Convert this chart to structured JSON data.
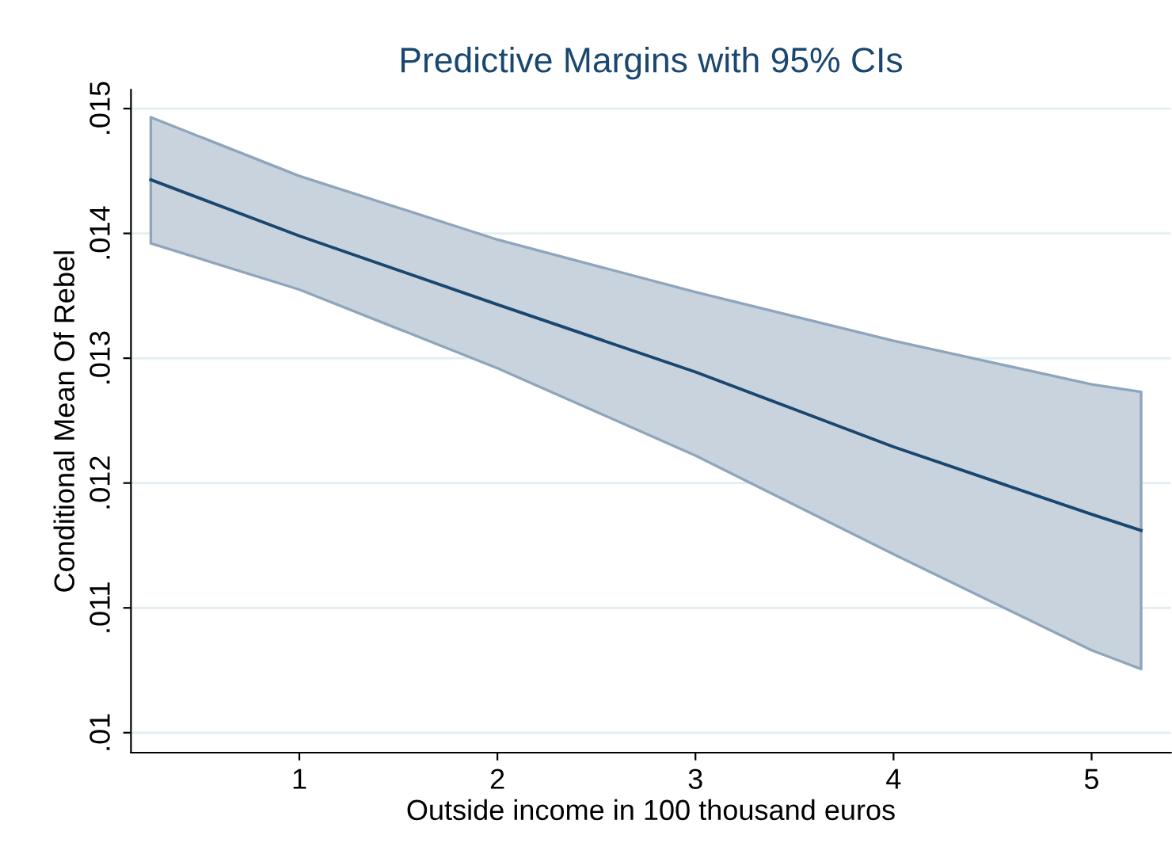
{
  "chart_data": {
    "type": "line",
    "title": "Predictive Margins with 95% CIs",
    "xlabel": "Outside income in 100 thousand euros",
    "ylabel": "Conditional Mean Of Rebel",
    "series": [
      {
        "color": "#1a476f",
        "x": [
          0.25,
          1,
          2,
          3,
          4,
          5,
          5.25
        ],
        "values": [
          0.01443,
          0.01398,
          0.01343,
          0.01289,
          0.01229,
          0.01175,
          0.01162
        ],
        "lower": [
          0.01392,
          0.01355,
          0.01292,
          0.01222,
          0.01143,
          0.01066,
          0.01051
        ],
        "upper": [
          0.01493,
          0.01446,
          0.01395,
          0.01353,
          0.01314,
          0.01279,
          0.01273
        ]
      }
    ],
    "xlim": [
      0.15,
      5.4
    ],
    "xticks": [
      1,
      2,
      3,
      4,
      5
    ],
    "ylim": [
      0.00984,
      0.01515
    ],
    "yticks": [
      {
        "value": 0.01,
        "label": ".01"
      },
      {
        "value": 0.011,
        "label": ".011"
      },
      {
        "value": 0.012,
        "label": ".012"
      },
      {
        "value": 0.013,
        "label": ".013"
      },
      {
        "value": 0.014,
        "label": ".014"
      },
      {
        "value": 0.015,
        "label": ".015"
      }
    ],
    "grid": "y",
    "line_style": "solid",
    "marker": "none"
  }
}
